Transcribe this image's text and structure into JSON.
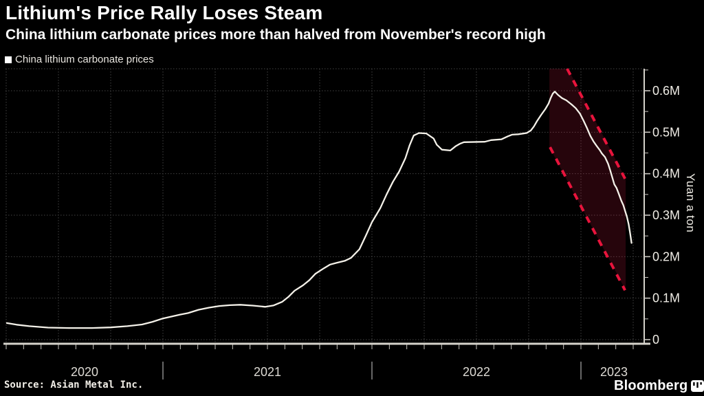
{
  "header": {
    "title": "Lithium's Price Rally Loses Steam",
    "subtitle": "China lithium carbonate prices more than halved from November's record high"
  },
  "legend": {
    "label": "China lithium carbonate prices",
    "marker_color": "#ffffff"
  },
  "footer": {
    "source": "Source: Asian Metal Inc.",
    "brand": "Bloomberg"
  },
  "colors": {
    "background": "#000000",
    "series_line": "#f4f1e9",
    "grid": "#434343",
    "axis": "#d6d3cc",
    "tick": "#c9c6c0",
    "divider": "#8a8a8a",
    "tick_label": "#f0ede6",
    "year_label": "#dedbd5",
    "channel_dash": "#e8143c",
    "channel_fill": "rgba(225,30,70,0.17)"
  },
  "chart_data": {
    "type": "line",
    "title": "Lithium's Price Rally Loses Steam",
    "subtitle": "China lithium carbonate prices more than halved from November's record high",
    "xlabel": "",
    "ylabel": "Yuan a ton",
    "grid": true,
    "legend_position": "top-left",
    "x_range_years": [
      2020.2467,
      2023.3026
    ],
    "ylim": [
      0,
      653000
    ],
    "y_ticks": [
      {
        "v": 0,
        "label": "0"
      },
      {
        "v": 100000,
        "label": "0.1M"
      },
      {
        "v": 200000,
        "label": "0.2M"
      },
      {
        "v": 300000,
        "label": "0.3M"
      },
      {
        "v": 400000,
        "label": "0.4M"
      },
      {
        "v": 500000,
        "label": "0.5M"
      },
      {
        "v": 600000,
        "label": "0.6M"
      }
    ],
    "y_minor_tick_start": 50000,
    "y_minor_tick_step": 100000,
    "y_minor_tick_end": 650000,
    "x_month_tick_step_years": 0.0833333,
    "x_grid_quarter_step_years": 0.25,
    "year_dividers": [
      2021,
      2022,
      2023
    ],
    "x_year_labels": [
      {
        "label": "2020",
        "center": 2020.625
      },
      {
        "label": "2021",
        "center": 2021.5
      },
      {
        "label": "2022",
        "center": 2022.5
      },
      {
        "label": "2023",
        "center": 2023.158
      }
    ],
    "series": [
      {
        "name": "China lithium carbonate prices",
        "color": "#f4f1e9",
        "points": [
          [
            2020.253,
            40000
          ],
          [
            2020.3,
            36000
          ],
          [
            2020.36,
            32500
          ],
          [
            2020.45,
            29000
          ],
          [
            2020.55,
            28000
          ],
          [
            2020.66,
            28000
          ],
          [
            2020.75,
            29500
          ],
          [
            2020.83,
            32500
          ],
          [
            2020.9,
            36500
          ],
          [
            2020.95,
            43000
          ],
          [
            2021.0,
            51000
          ],
          [
            2021.04,
            55500
          ],
          [
            2021.08,
            60000
          ],
          [
            2021.12,
            64000
          ],
          [
            2021.17,
            72000
          ],
          [
            2021.22,
            77000
          ],
          [
            2021.27,
            81000
          ],
          [
            2021.32,
            83000
          ],
          [
            2021.37,
            84000
          ],
          [
            2021.43,
            82000
          ],
          [
            2021.49,
            79000
          ],
          [
            2021.53,
            82500
          ],
          [
            2021.57,
            91000
          ],
          [
            2021.6,
            103000
          ],
          [
            2021.63,
            118000
          ],
          [
            2021.67,
            131000
          ],
          [
            2021.7,
            143000
          ],
          [
            2021.73,
            159000
          ],
          [
            2021.77,
            172000
          ],
          [
            2021.8,
            181000
          ],
          [
            2021.83,
            185000
          ],
          [
            2021.87,
            190000
          ],
          [
            2021.9,
            197000
          ],
          [
            2021.94,
            218000
          ],
          [
            2021.97,
            250000
          ],
          [
            2022.0,
            283000
          ],
          [
            2022.04,
            317000
          ],
          [
            2022.07,
            350000
          ],
          [
            2022.1,
            380000
          ],
          [
            2022.13,
            405000
          ],
          [
            2022.16,
            437000
          ],
          [
            2022.18,
            468000
          ],
          [
            2022.2,
            492000
          ],
          [
            2022.225,
            498000
          ],
          [
            2022.26,
            497000
          ],
          [
            2022.28,
            490000
          ],
          [
            2022.295,
            485000
          ],
          [
            2022.31,
            470000
          ],
          [
            2022.335,
            458000
          ],
          [
            2022.375,
            456000
          ],
          [
            2022.4,
            466000
          ],
          [
            2022.42,
            472000
          ],
          [
            2022.44,
            476000
          ],
          [
            2022.54,
            477000
          ],
          [
            2022.57,
            481000
          ],
          [
            2022.62,
            483000
          ],
          [
            2022.65,
            490000
          ],
          [
            2022.67,
            494000
          ],
          [
            2022.7,
            495000
          ],
          [
            2022.74,
            498000
          ],
          [
            2022.76,
            504000
          ],
          [
            2022.775,
            514000
          ],
          [
            2022.79,
            527000
          ],
          [
            2022.81,
            542000
          ],
          [
            2022.83,
            556000
          ],
          [
            2022.845,
            569000
          ],
          [
            2022.855,
            582000
          ],
          [
            2022.865,
            593000
          ],
          [
            2022.875,
            598000
          ],
          [
            2022.89,
            590000
          ],
          [
            2022.91,
            582000
          ],
          [
            2022.93,
            577000
          ],
          [
            2022.955,
            567000
          ],
          [
            2022.975,
            558000
          ],
          [
            2022.995,
            545000
          ],
          [
            2023.012,
            528000
          ],
          [
            2023.03,
            509000
          ],
          [
            2023.045,
            491000
          ],
          [
            2023.06,
            478000
          ],
          [
            2023.075,
            467000
          ],
          [
            2023.09,
            457000
          ],
          [
            2023.1,
            449000
          ],
          [
            2023.115,
            440000
          ],
          [
            2023.13,
            424000
          ],
          [
            2023.14,
            408000
          ],
          [
            2023.15,
            391000
          ],
          [
            2023.16,
            374000
          ],
          [
            2023.17,
            366000
          ],
          [
            2023.18,
            353000
          ],
          [
            2023.193,
            335000
          ],
          [
            2023.203,
            324000
          ],
          [
            2023.212,
            309000
          ],
          [
            2023.22,
            296000
          ],
          [
            2023.228,
            279000
          ],
          [
            2023.234,
            261000
          ],
          [
            2023.238,
            247000
          ],
          [
            2023.242,
            233000
          ]
        ]
      }
    ],
    "annotation_channel": {
      "description": "red dashed downtrend channel with dark shaded band over the Nov 2022 - Mar 2023 decline",
      "dash_color": "#e8143c",
      "fill_color": "rgba(225,30,70,0.17)",
      "upper_dash": [
        [
          2022.934,
          653000
        ],
        [
          2023.211,
          388000
        ]
      ],
      "lower_dash": [
        [
          2022.852,
          464000
        ],
        [
          2023.211,
          119000
        ]
      ],
      "polygon": [
        [
          2022.849,
          653000
        ],
        [
          2022.938,
          653000
        ],
        [
          2023.214,
          388000
        ],
        [
          2023.214,
          119000
        ],
        [
          2022.849,
          464000
        ]
      ]
    }
  }
}
